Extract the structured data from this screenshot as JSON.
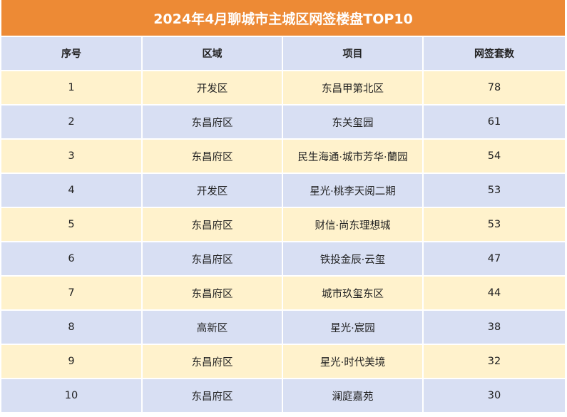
{
  "title": "2024年4月聊城市主城区网签楼盘TOP10",
  "headers": [
    "序号",
    "区域",
    "项目",
    "网签套数"
  ],
  "rows": [
    {
      "rank": "1",
      "district": "开发区",
      "project": "东昌甲第北区",
      "units": "78"
    },
    {
      "rank": "2",
      "district": "东昌府区",
      "project": "东关玺园",
      "units": "61"
    },
    {
      "rank": "3",
      "district": "东昌府区",
      "project": "民生海通·城市芳华·蘭园",
      "units": "54"
    },
    {
      "rank": "4",
      "district": "开发区",
      "project": "星光·桃李天阅二期",
      "units": "53"
    },
    {
      "rank": "5",
      "district": "东昌府区",
      "project": "财信·尚东理想城",
      "units": "53"
    },
    {
      "rank": "6",
      "district": "东昌府区",
      "project": "铁投金辰·云玺",
      "units": "47"
    },
    {
      "rank": "7",
      "district": "东昌府区",
      "project": "城市玖玺东区",
      "units": "44"
    },
    {
      "rank": "8",
      "district": "高新区",
      "project": "星光·宸园",
      "units": "38"
    },
    {
      "rank": "9",
      "district": "东昌府区",
      "project": "星光·时代美境",
      "units": "32"
    },
    {
      "rank": "10",
      "district": "东昌府区",
      "project": "澜庭嘉苑",
      "units": "30"
    }
  ],
  "colors": {
    "title_bg": "#ed8a35",
    "header_bg": "#d8dff3",
    "row_odd_bg": "#fff2cc",
    "row_even_bg": "#d8dff3"
  }
}
